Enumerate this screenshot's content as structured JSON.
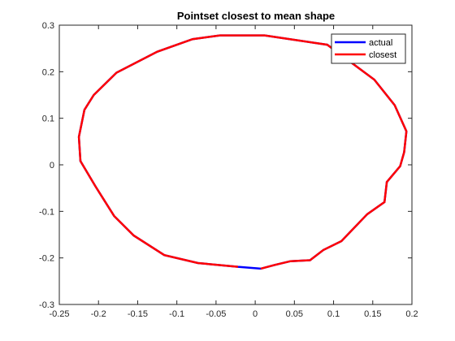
{
  "chart_data": {
    "type": "line",
    "title": "Pointset closest to mean shape",
    "xlim": [
      -0.25,
      0.2
    ],
    "ylim": [
      -0.3,
      0.3
    ],
    "xticks": [
      "-0.25",
      "-0.2",
      "-0.15",
      "-0.1",
      "-0.05",
      "0",
      "0.05",
      "0.1",
      "0.15",
      "0.2"
    ],
    "yticks": [
      "-0.3",
      "-0.2",
      "-0.1",
      "0",
      "0.1",
      "0.2",
      "0.3"
    ],
    "legend_position": "top-right",
    "grid": false,
    "series": [
      {
        "name": "actual",
        "color": "#0000ff",
        "x": [
          -0.022,
          0.007,
          0.025,
          0.045,
          0.07,
          0.087,
          0.11,
          0.143,
          0.165,
          0.168,
          0.185,
          0.19,
          0.193,
          0.178,
          0.152,
          0.092,
          0.012,
          -0.045,
          -0.08,
          -0.125,
          -0.177,
          -0.206,
          -0.218,
          -0.225,
          -0.223,
          -0.204,
          -0.18,
          -0.155,
          -0.116,
          -0.073,
          -0.022
        ],
        "y": [
          -0.219,
          -0.223,
          -0.215,
          -0.207,
          -0.205,
          -0.183,
          -0.164,
          -0.106,
          -0.08,
          -0.037,
          -0.003,
          0.027,
          0.072,
          0.128,
          0.183,
          0.258,
          0.278,
          0.278,
          0.27,
          0.243,
          0.198,
          0.15,
          0.118,
          0.06,
          0.008,
          -0.046,
          -0.11,
          -0.152,
          -0.194,
          -0.211,
          -0.219
        ]
      },
      {
        "name": "closest",
        "color": "#ff0000",
        "x": [
          -0.022,
          0.007,
          0.025,
          0.045,
          0.07,
          0.087,
          0.11,
          0.143,
          0.165,
          0.168,
          0.185,
          0.19,
          0.193,
          0.178,
          0.152,
          0.092,
          0.012,
          -0.045,
          -0.08,
          -0.125,
          -0.177,
          -0.206,
          -0.218,
          -0.225,
          -0.223,
          -0.204,
          -0.18,
          -0.155,
          -0.116,
          -0.073,
          -0.022
        ],
        "y": [
          -0.219,
          -0.223,
          -0.215,
          -0.207,
          -0.205,
          -0.183,
          -0.164,
          -0.106,
          -0.08,
          -0.037,
          -0.003,
          0.027,
          0.072,
          0.128,
          0.183,
          0.258,
          0.278,
          0.278,
          0.27,
          0.243,
          0.198,
          0.15,
          0.118,
          0.06,
          0.008,
          -0.046,
          -0.11,
          -0.152,
          -0.194,
          -0.211,
          -0.219
        ],
        "gap_after_first_point": true
      }
    ]
  }
}
